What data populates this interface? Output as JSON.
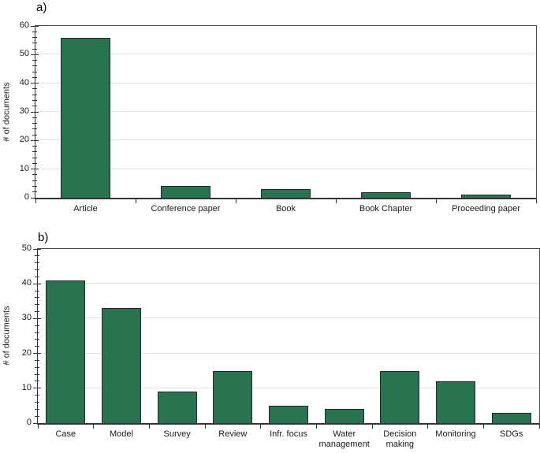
{
  "figure": {
    "panels": [
      {
        "label": "a)"
      },
      {
        "label": "b)"
      }
    ]
  },
  "chart_data": [
    {
      "type": "bar",
      "panel_label": "a)",
      "categories": [
        "Article",
        "Conference paper",
        "Book",
        "Book Chapter",
        "Proceeding paper"
      ],
      "values": [
        56,
        4,
        3,
        2,
        1
      ],
      "title": "",
      "xlabel": "",
      "ylabel": "# of documents",
      "ylim": [
        0,
        60
      ],
      "yticks": [
        0,
        10,
        20,
        30,
        40,
        50,
        60
      ],
      "ytick_step": 10,
      "yminor_step": 2,
      "grid": true,
      "legend": "none",
      "bar_color": "#2a7350",
      "bar_border_color": "#24282a",
      "bar_frac": 0.5
    },
    {
      "type": "bar",
      "panel_label": "b)",
      "categories": [
        "Case",
        "Model",
        "Survey",
        "Review",
        "Infr. focus",
        "Water management",
        "Decision making",
        "Monitoring",
        "SDGs"
      ],
      "values": [
        41,
        33,
        9,
        15,
        5,
        4,
        15,
        12,
        3
      ],
      "title": "",
      "xlabel": "",
      "ylabel": "# of documents",
      "ylim": [
        0,
        50
      ],
      "yticks": [
        0,
        10,
        20,
        30,
        40,
        50
      ],
      "ytick_step": 10,
      "yminor_step": 2,
      "grid": true,
      "legend": "none",
      "bar_color": "#2a7350",
      "bar_border_color": "#24282a",
      "bar_frac": 0.71
    }
  ]
}
